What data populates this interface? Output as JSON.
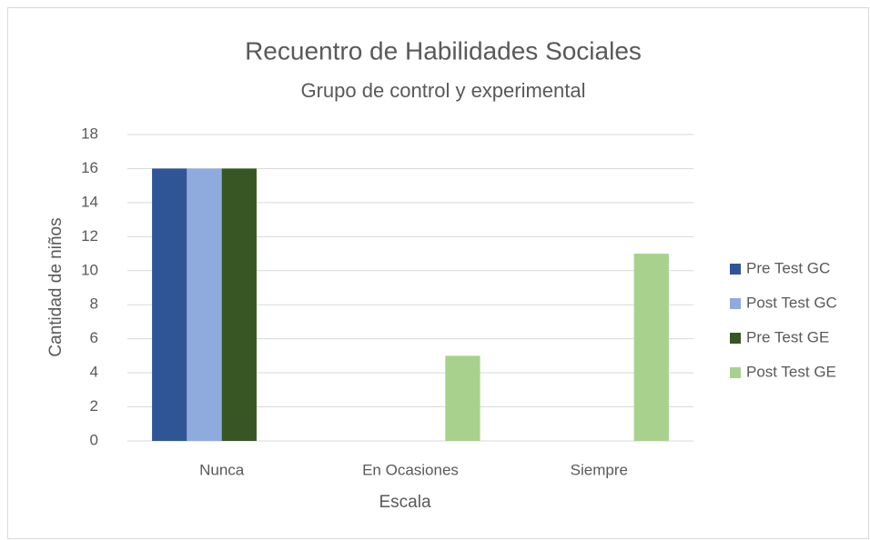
{
  "chart_data": {
    "type": "bar",
    "title": "Recuentro de Habilidades Sociales",
    "subtitle": "Grupo de control y experimental",
    "y_label": "Cantidad de niños",
    "x_label": "Escala",
    "categories": [
      "Nunca",
      "En Ocasiones",
      "Siempre"
    ],
    "series": [
      {
        "name": "Pre Test GC",
        "color": "#2f5597",
        "values": [
          16,
          0,
          0
        ]
      },
      {
        "name": "Post Test GC",
        "color": "#8faadc",
        "values": [
          16,
          0,
          0
        ]
      },
      {
        "name": "Pre Test GE",
        "color": "#375623",
        "values": [
          16,
          0,
          0
        ]
      },
      {
        "name": "Post Test GE",
        "color": "#a9d18e",
        "values": [
          0,
          5,
          11
        ]
      }
    ],
    "ylim": [
      0,
      18
    ],
    "yticks": [
      0,
      2,
      4,
      6,
      8,
      10,
      12,
      14,
      16,
      18
    ],
    "grid": true,
    "legend": "right"
  }
}
